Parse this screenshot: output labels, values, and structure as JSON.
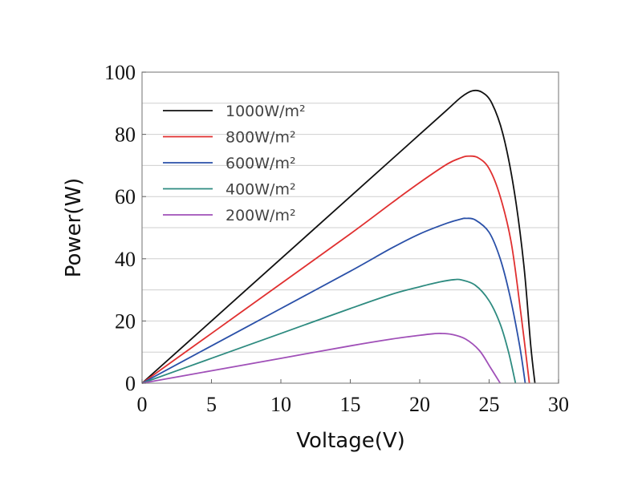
{
  "chart_data": {
    "type": "line",
    "title": "",
    "xlabel": "Voltage(V)",
    "ylabel": "Power(W)",
    "xlim": [
      0,
      30
    ],
    "ylim": [
      0,
      100
    ],
    "x_ticks": [
      "0",
      "5",
      "10",
      "15",
      "20",
      "25",
      "30"
    ],
    "y_ticks": [
      "0",
      "20",
      "40",
      "60",
      "80",
      "100"
    ],
    "grid": "horizontal",
    "legend_position": "top-left",
    "series": [
      {
        "name": "1000W/m²",
        "color": "#111111",
        "points": [
          [
            0,
            0
          ],
          [
            5,
            20
          ],
          [
            10,
            40
          ],
          [
            15,
            60
          ],
          [
            18,
            72
          ],
          [
            20,
            80
          ],
          [
            22,
            88
          ],
          [
            23,
            92
          ],
          [
            23.8,
            94
          ],
          [
            24.5,
            93.5
          ],
          [
            25.2,
            90
          ],
          [
            26,
            80
          ],
          [
            26.8,
            62
          ],
          [
            27.5,
            38
          ],
          [
            28,
            12
          ],
          [
            28.3,
            0
          ]
        ]
      },
      {
        "name": "800W/m²",
        "color": "#e03030",
        "points": [
          [
            0,
            0
          ],
          [
            5,
            16
          ],
          [
            10,
            32
          ],
          [
            15,
            48
          ],
          [
            18,
            58
          ],
          [
            20,
            64.5
          ],
          [
            22,
            70.5
          ],
          [
            23,
            72.5
          ],
          [
            23.5,
            73
          ],
          [
            24.2,
            72.5
          ],
          [
            25,
            69
          ],
          [
            25.8,
            60
          ],
          [
            26.6,
            45
          ],
          [
            27.3,
            22
          ],
          [
            27.9,
            0
          ]
        ]
      },
      {
        "name": "600W/m²",
        "color": "#2a50a8",
        "points": [
          [
            0,
            0
          ],
          [
            5,
            12
          ],
          [
            10,
            24
          ],
          [
            15,
            36
          ],
          [
            18,
            43.5
          ],
          [
            20,
            48
          ],
          [
            22,
            51.5
          ],
          [
            23,
            52.8
          ],
          [
            23.3,
            53
          ],
          [
            24,
            52.5
          ],
          [
            25,
            48.5
          ],
          [
            25.8,
            40
          ],
          [
            26.5,
            28
          ],
          [
            27.2,
            12
          ],
          [
            27.6,
            0
          ]
        ]
      },
      {
        "name": "400W/m²",
        "color": "#2e8b80",
        "points": [
          [
            0,
            0
          ],
          [
            5,
            8
          ],
          [
            10,
            16
          ],
          [
            15,
            24
          ],
          [
            18,
            28.6
          ],
          [
            20,
            31
          ],
          [
            21.5,
            32.6
          ],
          [
            22.5,
            33.3
          ],
          [
            23,
            33.2
          ],
          [
            24,
            31.5
          ],
          [
            25,
            26.5
          ],
          [
            25.8,
            19
          ],
          [
            26.4,
            10
          ],
          [
            26.9,
            0
          ]
        ]
      },
      {
        "name": "200W/m²",
        "color": "#a050b8",
        "points": [
          [
            0,
            0
          ],
          [
            5,
            4
          ],
          [
            10,
            8
          ],
          [
            15,
            12
          ],
          [
            18,
            14.2
          ],
          [
            20,
            15.4
          ],
          [
            21,
            15.9
          ],
          [
            21.5,
            16
          ],
          [
            22.3,
            15.7
          ],
          [
            23.3,
            14.2
          ],
          [
            24.3,
            10.5
          ],
          [
            25.1,
            5
          ],
          [
            25.8,
            0
          ]
        ]
      }
    ]
  }
}
